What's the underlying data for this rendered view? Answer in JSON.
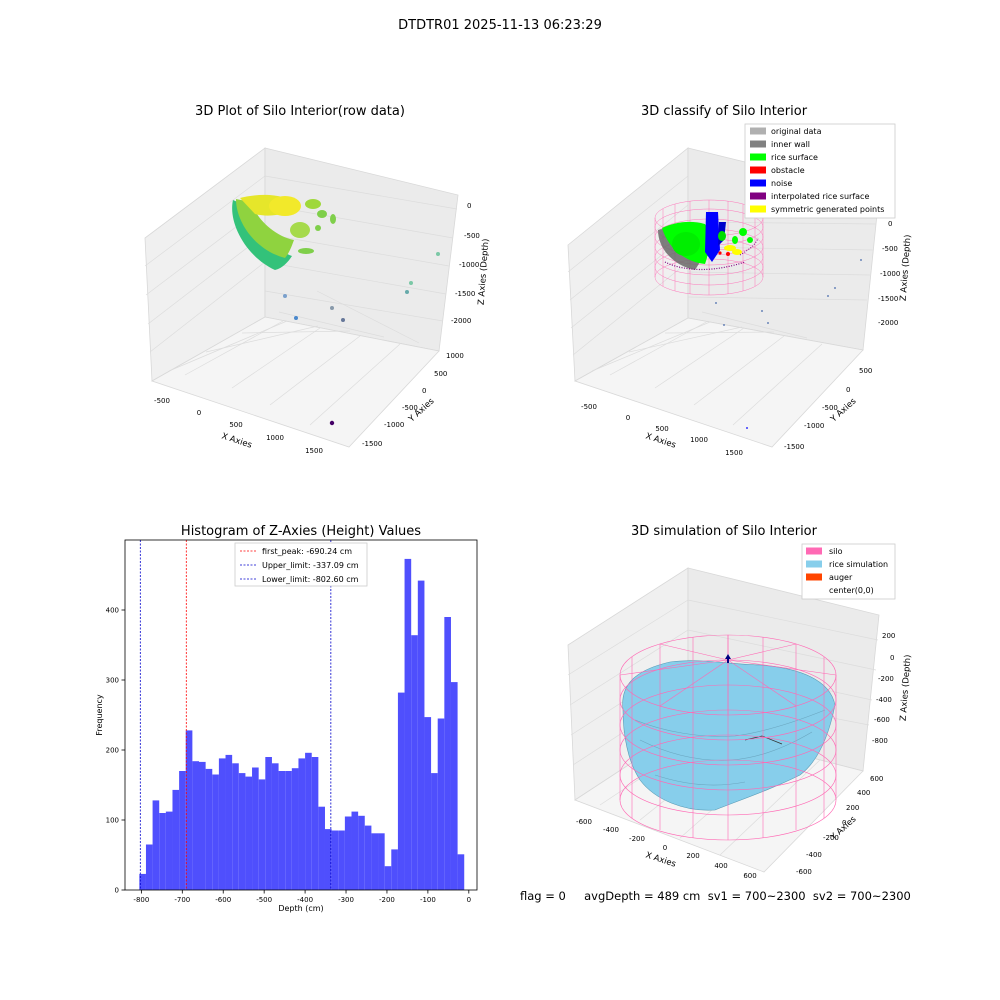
{
  "figure": {
    "suptitle": "DTDTR01 2025-11-13 06:23:29",
    "footer": "flag = 0     avgDepth = 489 cm  sv1 = 700~2300  sv2 = 700~2300"
  },
  "colors": {
    "hist_bar": "#4f4ffd",
    "first_peak_line": "#ff0000",
    "limit_line": "#0000cc",
    "silo": "#ff69b4",
    "rice_sim": "#87ceeb",
    "auger": "#ff4500",
    "rice_surface": "#00ff00",
    "inner_wall": "#808080",
    "noise": "#0000ff",
    "obstacle": "#ff0000",
    "interp": "#800080",
    "sym": "#ffff00",
    "original": "#b0b0b0"
  },
  "panel_tl": {
    "title": "3D Plot of Silo Interior(row data)",
    "xlabel": "X Axies",
    "ylabel": "Y Axies",
    "zlabel": "Z Axies (Depth)",
    "xticks": [
      "-500",
      "0",
      "500",
      "1000",
      "1500"
    ],
    "yticks": [
      "-1500",
      "-1000",
      "-500",
      "0",
      "500",
      "1000"
    ],
    "zticks": [
      "0",
      "-500",
      "-1000",
      "-1500",
      "-2000"
    ]
  },
  "panel_tr": {
    "title": "3D classify of Silo Interior",
    "xlabel": "X Axies",
    "ylabel": "Y Axies",
    "zlabel": "Z Axies (Depth)",
    "xticks": [
      "-500",
      "0",
      "500",
      "1000",
      "1500"
    ],
    "yticks": [
      "-1500",
      "-1000",
      "-500",
      "0",
      "500"
    ],
    "zticks": [
      "0",
      "-500",
      "-1000",
      "-1500",
      "-2000"
    ],
    "legend": [
      "original data",
      "inner wall",
      "rice surface",
      "obstacle",
      "noise",
      "interpolated rice surface",
      "symmetric generated points"
    ]
  },
  "panel_br": {
    "title": "3D simulation of Silo Interior",
    "xlabel": "X Axies",
    "ylabel": "Y Axies",
    "zlabel": "Z Axies (Depth)",
    "xticks": [
      "-600",
      "-400",
      "-200",
      "0",
      "200",
      "400",
      "600"
    ],
    "yticks": [
      "-600",
      "-400",
      "-200",
      "0",
      "200",
      "400",
      "600"
    ],
    "zticks": [
      "200",
      "0",
      "-200",
      "-400",
      "-600",
      "-800"
    ],
    "legend": [
      "silo",
      "rice simulation",
      "auger",
      "center(0,0)"
    ]
  },
  "chart_data": {
    "type": "bar",
    "title": "Histogram of Z-Axies (Height) Values",
    "xlabel": "Depth (cm)",
    "ylabel": "Frequency",
    "xlim": [
      -840,
      20
    ],
    "ylim": [
      0,
      500
    ],
    "xticks": [
      -800,
      -700,
      -600,
      -500,
      -400,
      -300,
      -200,
      -100,
      0
    ],
    "yticks": [
      0,
      100,
      200,
      300,
      400
    ],
    "bin_width": 16.2,
    "bins_start": [
      -805,
      -788.8,
      -772.6,
      -756.4,
      -740.2,
      -724,
      -707.8,
      -691.6,
      -675.4,
      -659.2,
      -643,
      -626.8,
      -610.6,
      -594.4,
      -578.2,
      -562,
      -545.8,
      -529.6,
      -513.4,
      -497.2,
      -481,
      -464.8,
      -448.6,
      -432.4,
      -416.2,
      -400,
      -383.8,
      -367.6,
      -351.4,
      -335.2,
      -319,
      -302.8,
      -286.6,
      -270.4,
      -254.2,
      -238,
      -221.8,
      -205.6,
      -189.4,
      -173.2,
      -157,
      -140.8,
      -124.6,
      -108.4,
      -92.2,
      -76,
      -59.8,
      -43.6,
      -27.4,
      -11.2
    ],
    "values": [
      23,
      65,
      128,
      110,
      112,
      143,
      170,
      228,
      184,
      183,
      173,
      165,
      188,
      193,
      181,
      167,
      162,
      175,
      158,
      190,
      181,
      170,
      170,
      174,
      188,
      196,
      190,
      119,
      87,
      85,
      85,
      105,
      112,
      106,
      92,
      81,
      81,
      34,
      58,
      282,
      473,
      364,
      442,
      247,
      167,
      245,
      390,
      297,
      51
    ],
    "vlines": [
      {
        "label": "first_peak: -690.24 cm",
        "x": -690.24,
        "color": "#ff0000"
      },
      {
        "label": "Upper_limit: -337.09 cm",
        "x": -337.09,
        "color": "#0000cc"
      },
      {
        "label": "Lower_limit: -802.60 cm",
        "x": -802.6,
        "color": "#0000cc"
      }
    ],
    "grid": false,
    "legend_position": "top-center"
  }
}
